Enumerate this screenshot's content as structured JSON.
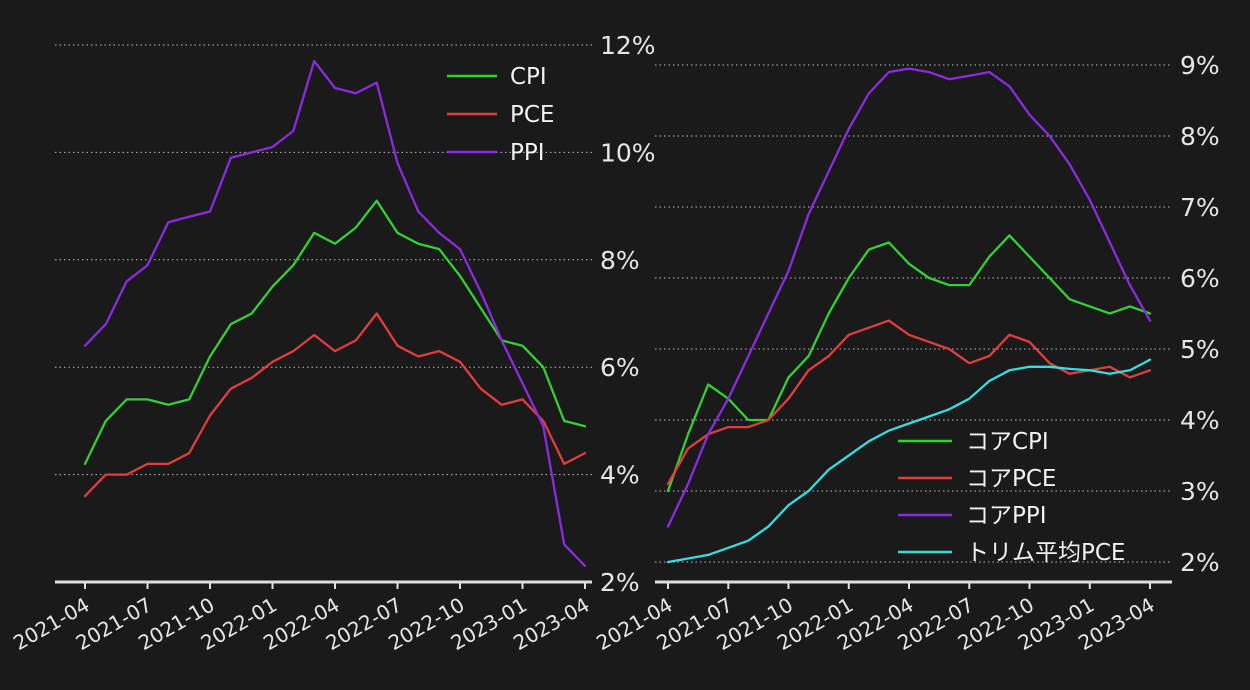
{
  "page": {
    "background": "#1a1a1a",
    "text_color": "#e6e6e6",
    "gridline_color": "#b9b9b9",
    "axis_color": "#e0e0e0"
  },
  "chart_data": [
    {
      "type": "line",
      "title": "",
      "xlabel": "",
      "ylabel": "",
      "grid": true,
      "legend_position": "upper-right-inside",
      "ylim": [
        2,
        12
      ],
      "yticks": [
        2,
        4,
        6,
        8,
        10,
        12
      ],
      "y_tick_suffix": "%",
      "x_tick_step": 3,
      "x": [
        "2021-04",
        "2021-05",
        "2021-06",
        "2021-07",
        "2021-08",
        "2021-09",
        "2021-10",
        "2021-11",
        "2021-12",
        "2022-01",
        "2022-02",
        "2022-03",
        "2022-04",
        "2022-05",
        "2022-06",
        "2022-07",
        "2022-08",
        "2022-09",
        "2022-10",
        "2022-11",
        "2022-12",
        "2023-01",
        "2023-02",
        "2023-03",
        "2023-04"
      ],
      "x_tick_labels": [
        "2021-04",
        "2021-07",
        "2021-10",
        "2022-01",
        "2022-04",
        "2022-07",
        "2022-10",
        "2023-01",
        "2023-04"
      ],
      "series": [
        {
          "name": "CPI",
          "color": "#32d132",
          "values": [
            4.2,
            5.0,
            5.4,
            5.4,
            5.3,
            5.4,
            6.2,
            6.8,
            7.0,
            7.5,
            7.9,
            8.5,
            8.3,
            8.6,
            9.1,
            8.5,
            8.3,
            8.2,
            7.7,
            7.1,
            6.5,
            6.4,
            6.0,
            5.0,
            4.9
          ]
        },
        {
          "name": "PCE",
          "color": "#e23d3d",
          "values": [
            3.6,
            4.0,
            4.0,
            4.2,
            4.2,
            4.4,
            5.1,
            5.6,
            5.8,
            6.1,
            6.3,
            6.6,
            6.3,
            6.5,
            7.0,
            6.4,
            6.2,
            6.3,
            6.1,
            5.6,
            5.3,
            5.4,
            5.0,
            4.2,
            4.4
          ]
        },
        {
          "name": "PPI",
          "color": "#8a2be2",
          "values": [
            6.4,
            6.8,
            7.6,
            7.9,
            8.7,
            8.8,
            8.9,
            9.9,
            10.0,
            10.1,
            10.4,
            11.7,
            11.2,
            11.1,
            11.3,
            9.8,
            8.9,
            8.5,
            8.2,
            7.4,
            6.5,
            5.7,
            4.9,
            2.7,
            2.3
          ]
        }
      ]
    },
    {
      "type": "line",
      "title": "",
      "xlabel": "",
      "ylabel": "",
      "grid": true,
      "legend_position": "lower-right-inside",
      "ylim": [
        2,
        9
      ],
      "yticks": [
        2,
        3,
        4,
        5,
        6,
        7,
        8,
        9
      ],
      "y_tick_suffix": "%",
      "x_tick_step": 3,
      "x": [
        "2021-04",
        "2021-05",
        "2021-06",
        "2021-07",
        "2021-08",
        "2021-09",
        "2021-10",
        "2021-11",
        "2021-12",
        "2022-01",
        "2022-02",
        "2022-03",
        "2022-04",
        "2022-05",
        "2022-06",
        "2022-07",
        "2022-08",
        "2022-09",
        "2022-10",
        "2022-11",
        "2022-12",
        "2023-01",
        "2023-02",
        "2023-03",
        "2023-04"
      ],
      "x_tick_labels": [
        "2021-04",
        "2021-07",
        "2021-10",
        "2022-01",
        "2022-04",
        "2022-07",
        "2022-10",
        "2023-01",
        "2023-04"
      ],
      "series": [
        {
          "name": "コアCPI",
          "color": "#32d132",
          "values": [
            3.0,
            3.8,
            4.5,
            4.3,
            4.0,
            4.0,
            4.6,
            4.9,
            5.5,
            6.0,
            6.4,
            6.5,
            6.2,
            6.0,
            5.9,
            5.9,
            6.3,
            6.6,
            6.3,
            6.0,
            5.7,
            5.6,
            5.5,
            5.6,
            5.5
          ]
        },
        {
          "name": "コアPCE",
          "color": "#e23d3d",
          "values": [
            3.1,
            3.6,
            3.8,
            3.9,
            3.9,
            4.0,
            4.3,
            4.7,
            4.9,
            5.2,
            5.3,
            5.4,
            5.2,
            5.1,
            5.0,
            4.8,
            4.9,
            5.2,
            5.1,
            4.8,
            4.65,
            4.7,
            4.75,
            4.6,
            4.7
          ]
        },
        {
          "name": "コアPPI",
          "color": "#8a2be2",
          "values": [
            2.5,
            3.1,
            3.8,
            4.3,
            4.9,
            5.5,
            6.1,
            6.9,
            7.5,
            8.1,
            8.6,
            8.9,
            8.95,
            8.9,
            8.8,
            8.85,
            8.9,
            8.7,
            8.3,
            8.0,
            7.6,
            7.1,
            6.5,
            5.9,
            5.4
          ]
        },
        {
          "name": "トリム平均PCE",
          "color": "#35dede",
          "values": [
            2.0,
            2.05,
            2.1,
            2.2,
            2.3,
            2.5,
            2.8,
            3.0,
            3.3,
            3.5,
            3.7,
            3.85,
            3.95,
            4.05,
            4.15,
            4.3,
            4.55,
            4.7,
            4.75,
            4.75,
            4.72,
            4.7,
            4.65,
            4.7,
            4.85
          ]
        }
      ]
    }
  ]
}
